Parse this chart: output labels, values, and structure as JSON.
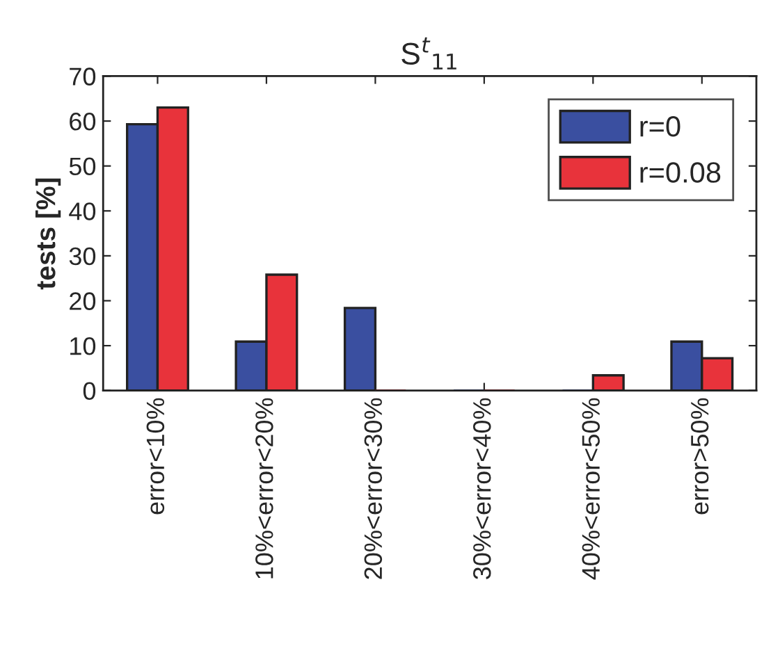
{
  "chart_data": {
    "type": "bar",
    "title": "S$^{t}$$_{11}$",
    "ylabel": "tests [%]",
    "categories": [
      "error<10%",
      "10%<error<20%",
      "20%<error<30%",
      "30%<error<40%",
      "40%<error<50%",
      "error>50%"
    ],
    "series": [
      {
        "name": "r=0",
        "color": "#3a4fa0",
        "values": [
          59.3,
          10.9,
          18.4,
          0,
          0,
          10.9
        ]
      },
      {
        "name": "r=0.08",
        "color": "#e8333b",
        "values": [
          63.0,
          25.8,
          0,
          0,
          3.4,
          7.2
        ]
      }
    ],
    "ylim": [
      0,
      70
    ],
    "yticks": [
      0,
      10,
      20,
      30,
      40,
      50,
      60,
      70
    ],
    "grid": false,
    "legend": "top right"
  }
}
